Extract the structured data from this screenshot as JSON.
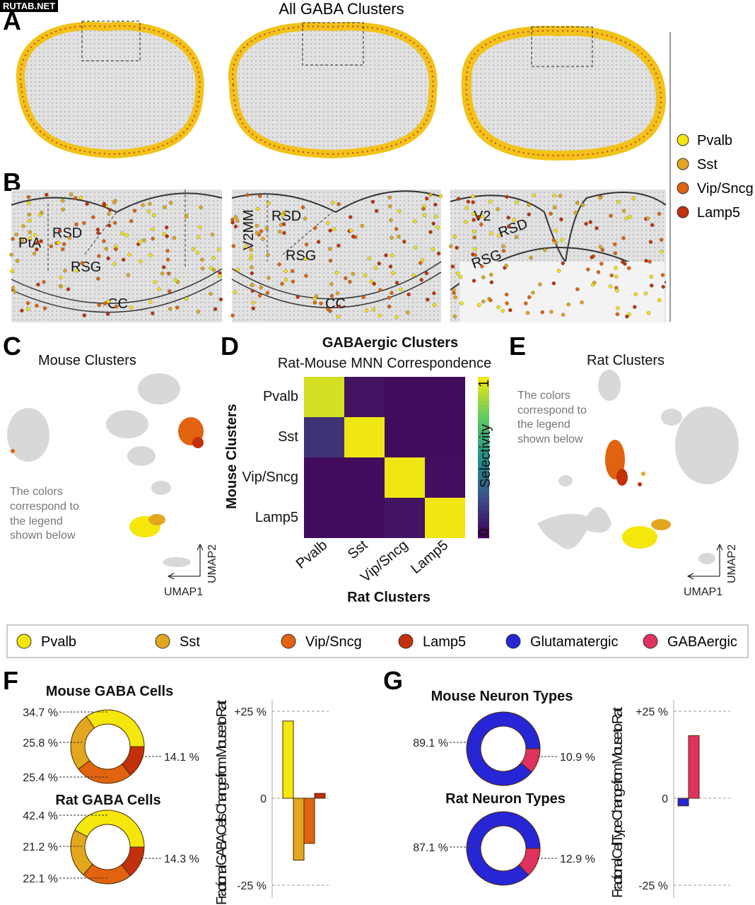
{
  "watermark": "RUTAB.NET",
  "colors": {
    "Pvalb": "#f5e60c",
    "Sst": "#e2a71e",
    "Vip/Sncg": "#e1620f",
    "Lamp5": "#c2300c",
    "Glutamatergic": "#2626d6",
    "GABAergic": "#e0325f"
  },
  "panelA": {
    "label": "A",
    "title": "All GABA Clusters"
  },
  "panelB": {
    "label": "B",
    "regions1": [
      "PtA",
      "RSD",
      "RSG",
      "CC"
    ],
    "regions2": [
      "V2MM",
      "RSD",
      "RSG",
      "CC"
    ],
    "regions3": [
      "V2",
      "RSD",
      "RSG"
    ]
  },
  "side_legend": [
    "Pvalb",
    "Sst",
    "Vip/Sncg",
    "Lamp5"
  ],
  "panelC": {
    "label": "C",
    "title": "Mouse Clusters",
    "note": [
      "The colors",
      "correspond to",
      "the legend",
      "shown below"
    ],
    "axis_x": "UMAP1",
    "axis_y": "UMAP2"
  },
  "panelE": {
    "label": "E",
    "title": "Rat Clusters",
    "note": [
      "The colors",
      "correspond to",
      "the legend",
      "shown below"
    ],
    "axis_x": "UMAP1",
    "axis_y": "UMAP2"
  },
  "legend": [
    "Pvalb",
    "Sst",
    "Vip/Sncg",
    "Lamp5",
    "Glutamatergic",
    "GABAergic"
  ],
  "panelF": {
    "label": "F"
  },
  "panelG": {
    "label": "G"
  },
  "chart_data": [
    {
      "type": "heatmap",
      "title": "GABAergic Clusters",
      "subtitle": "Rat-Mouse MNN Correspondence",
      "xlabel": "Rat Clusters",
      "ylabel": "Mouse Clusters",
      "x": [
        "Pvalb",
        "Sst",
        "Vip/Sncg",
        "Lamp5"
      ],
      "y": [
        "Pvalb",
        "Sst",
        "Vip/Sncg",
        "Lamp5"
      ],
      "values": [
        [
          0.95,
          0.06,
          0.03,
          0.03
        ],
        [
          0.15,
          1.0,
          0.03,
          0.03
        ],
        [
          0.03,
          0.03,
          1.0,
          0.04
        ],
        [
          0.03,
          0.03,
          0.06,
          1.0
        ]
      ],
      "colorbar": {
        "label": "Selectivity",
        "min": "0",
        "max": "1"
      },
      "panel": "D"
    },
    {
      "type": "pie",
      "title": "Mouse GABA Cells",
      "categories": [
        "Pvalb",
        "Sst",
        "Vip/Sncg",
        "Lamp5"
      ],
      "values": [
        34.7,
        25.8,
        25.4,
        14.1
      ],
      "labels": [
        "34.7 %",
        "25.8 %",
        "25.4 %",
        "14.1 %"
      ]
    },
    {
      "type": "pie",
      "title": "Rat GABA Cells",
      "categories": [
        "Pvalb",
        "Sst",
        "Vip/Sncg",
        "Lamp5"
      ],
      "values": [
        42.4,
        21.2,
        22.1,
        14.3
      ],
      "labels": [
        "42.4 %",
        "21.2 %",
        "22.1 %",
        "14.3 %"
      ]
    },
    {
      "type": "bar",
      "ylabel": "Fractional GABA Cells Change from Mouse to Rat",
      "categories": [
        "Pvalb",
        "Sst",
        "Vip/Sncg",
        "Lamp5"
      ],
      "values": [
        22.2,
        -17.8,
        -13.0,
        1.4
      ],
      "ylim": [
        -25,
        25
      ],
      "yticks": [
        "+25 %",
        "0",
        "-25 %"
      ]
    },
    {
      "type": "pie",
      "title": "Mouse Neuron Types",
      "categories": [
        "Glutamatergic",
        "GABAergic"
      ],
      "values": [
        89.1,
        10.9
      ],
      "labels": [
        "89.1 %",
        "10.9 %"
      ]
    },
    {
      "type": "pie",
      "title": "Rat Neuron Types",
      "categories": [
        "Glutamatergic",
        "GABAergic"
      ],
      "values": [
        87.1,
        12.9
      ],
      "labels": [
        "87.1 %",
        "12.9 %"
      ]
    },
    {
      "type": "bar",
      "ylabel": "Fractional Cell Type Change from Mouse to Rat",
      "categories": [
        "Glutamatergic",
        "GABAergic"
      ],
      "values": [
        -2.2,
        18.0
      ],
      "ylim": [
        -25,
        25
      ],
      "yticks": [
        "+25 %",
        "0",
        "-25 %"
      ]
    }
  ]
}
